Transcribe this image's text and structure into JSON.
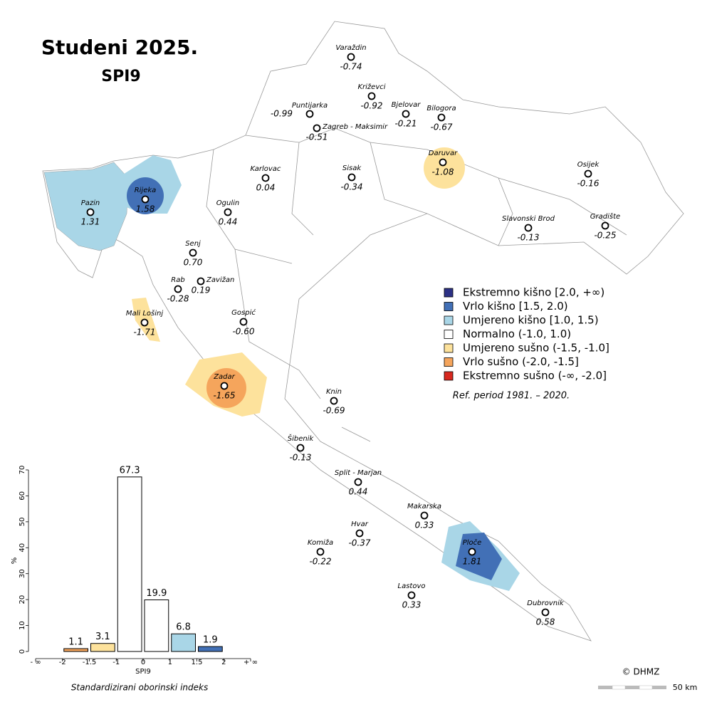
{
  "title": "Studeni 2025.",
  "subtitle": "SPI9",
  "legend": [
    {
      "label": "Ekstremno kišno [2.0, +∞)",
      "color": "#2c3185"
    },
    {
      "label": "Vrlo kišno [1.5, 2.0)",
      "color": "#4270b6"
    },
    {
      "label": "Umjereno kišno [1.0, 1.5)",
      "color": "#a9d6e7"
    },
    {
      "label": "Normalno (-1.0, 1.0)",
      "color": "#ffffff"
    },
    {
      "label": "Umjereno sušno (-1.5, -1.0]",
      "color": "#fde29c"
    },
    {
      "label": "Vrlo sušno (-2.0, -1.5]",
      "color": "#f5a55c"
    },
    {
      "label": "Ekstremno sušno (-∞, -2.0]",
      "color": "#d7281f"
    }
  ],
  "ref_period": "Ref. period 1981. – 2020.",
  "stations": [
    {
      "name": "Varaždin",
      "value": "-0.74"
    },
    {
      "name": "Križevci",
      "value": "-0.92"
    },
    {
      "name": "Puntijarka",
      "value": "-0.99"
    },
    {
      "name": "Zagreb - Maksimir",
      "value": "-0.51"
    },
    {
      "name": "Bjelovar",
      "value": "-0.21"
    },
    {
      "name": "Bilogora",
      "value": "-0.67"
    },
    {
      "name": "Daruvar",
      "value": "-1.08"
    },
    {
      "name": "Karlovac",
      "value": "0.04"
    },
    {
      "name": "Sisak",
      "value": "-0.34"
    },
    {
      "name": "Osijek",
      "value": "-0.16"
    },
    {
      "name": "Pazin",
      "value": "1.31"
    },
    {
      "name": "Rijeka",
      "value": "1.58"
    },
    {
      "name": "Ogulin",
      "value": "0.44"
    },
    {
      "name": "Slavonski Brod",
      "value": "-0.13"
    },
    {
      "name": "Gradište",
      "value": "-0.25"
    },
    {
      "name": "Senj",
      "value": "0.70"
    },
    {
      "name": "Rab",
      "value": "-0.28"
    },
    {
      "name": "Zavižan",
      "value": "0.19"
    },
    {
      "name": "Mali Lošinj",
      "value": "-1.71"
    },
    {
      "name": "Gospić",
      "value": "-0.60"
    },
    {
      "name": "Zadar",
      "value": "-1.65"
    },
    {
      "name": "Knin",
      "value": "-0.69"
    },
    {
      "name": "Šibenik",
      "value": "-0.13"
    },
    {
      "name": "Split - Marjan",
      "value": "0.44"
    },
    {
      "name": "Makarska",
      "value": "0.33"
    },
    {
      "name": "Hvar",
      "value": "-0.37"
    },
    {
      "name": "Ploče",
      "value": "1.81"
    },
    {
      "name": "Komiža",
      "value": "-0.22"
    },
    {
      "name": "Lastovo",
      "value": "0.33"
    },
    {
      "name": "Dubrovnik",
      "value": "0.58"
    }
  ],
  "chart_data": {
    "type": "bar",
    "x_edge_labels": [
      "- ∞",
      "-2",
      "-1.5",
      "-1",
      "0",
      "1",
      "1.5",
      "2",
      "+ ∞"
    ],
    "values": [
      0,
      1.1,
      3.1,
      67.3,
      19.9,
      6.8,
      1.9,
      0
    ],
    "colors": [
      "#d7281f",
      "#f5a55c",
      "#fde29c",
      "#ffffff",
      "#ffffff",
      "#a9d6e7",
      "#4270b6",
      "#2c3185"
    ],
    "ylim": [
      0,
      70
    ],
    "yticks": [
      0,
      10,
      20,
      30,
      40,
      50,
      60,
      70
    ],
    "xlabel": "SPI9",
    "ylabel": "%",
    "caption": "Standardizirani oborinski indeks"
  },
  "copyright": "© DHMZ",
  "scale_label": "50 km"
}
